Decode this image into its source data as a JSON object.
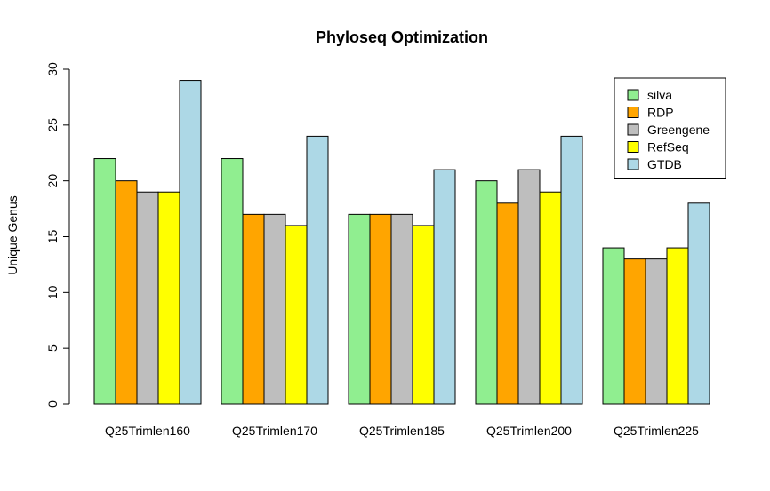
{
  "chart_data": {
    "type": "bar",
    "title": "Phyloseq Optimization",
    "xlabel": "",
    "ylabel": "Unique Genus",
    "ylim": [
      0,
      30
    ],
    "yticks": [
      0,
      5,
      10,
      15,
      20,
      25,
      30
    ],
    "categories": [
      "Q25Trimlen160",
      "Q25Trimlen170",
      "Q25Trimlen185",
      "Q25Trimlen200",
      "Q25Trimlen225"
    ],
    "series": [
      {
        "name": "silva",
        "color": "#90EE90",
        "values": [
          22,
          22,
          17,
          20,
          14
        ]
      },
      {
        "name": "RDP",
        "color": "#FFA500",
        "values": [
          20,
          17,
          17,
          18,
          13
        ]
      },
      {
        "name": "Greengene",
        "color": "#BEBEBE",
        "values": [
          19,
          17,
          17,
          21,
          13
        ]
      },
      {
        "name": "RefSeq",
        "color": "#FFFF00",
        "values": [
          19,
          16,
          16,
          19,
          14
        ]
      },
      {
        "name": "GTDB",
        "color": "#ADD8E6",
        "values": [
          29,
          24,
          21,
          24,
          18
        ]
      }
    ],
    "grid": false,
    "legend_position": "top-right"
  }
}
